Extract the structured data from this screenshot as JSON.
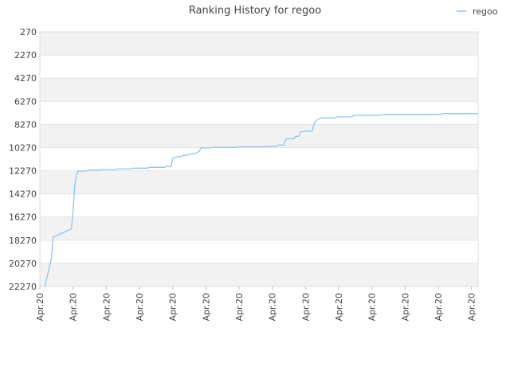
{
  "chart_data": {
    "type": "line",
    "title": "Ranking History for regoo",
    "xlabel": "",
    "ylabel": "",
    "legend_position": "top-right",
    "y_inverted": true,
    "ylim": [
      270,
      22270
    ],
    "y_ticks": [
      270,
      2270,
      4270,
      6270,
      8270,
      10270,
      12270,
      14270,
      16270,
      18270,
      20270,
      22270
    ],
    "x_tick_labels": [
      "Apr.20",
      "Apr.20",
      "Apr.20",
      "Apr.20",
      "Apr.20",
      "Apr.20",
      "Apr.20",
      "Apr.20",
      "Apr.20",
      "Apr.20",
      "Apr.20",
      "Apr.20",
      "Apr.20",
      "Apr.20"
    ],
    "x_range": [
      0,
      13.2
    ],
    "grid": true,
    "series": [
      {
        "name": "regoo",
        "color": "#90c4ee",
        "points": [
          [
            0.15,
            22270
          ],
          [
            0.35,
            19800
          ],
          [
            0.4,
            18000
          ],
          [
            0.95,
            17300
          ],
          [
            1.0,
            15700
          ],
          [
            1.05,
            13600
          ],
          [
            1.1,
            12700
          ],
          [
            1.15,
            12300
          ],
          [
            1.4,
            12300
          ],
          [
            1.45,
            12220
          ],
          [
            1.8,
            12220
          ],
          [
            1.85,
            12170
          ],
          [
            2.3,
            12170
          ],
          [
            2.35,
            12100
          ],
          [
            2.75,
            12100
          ],
          [
            2.8,
            12050
          ],
          [
            3.25,
            12050
          ],
          [
            3.3,
            11980
          ],
          [
            3.75,
            11980
          ],
          [
            3.8,
            11900
          ],
          [
            3.95,
            11900
          ],
          [
            4.0,
            11200
          ],
          [
            4.05,
            11100
          ],
          [
            4.25,
            11050
          ],
          [
            4.3,
            10950
          ],
          [
            4.5,
            10900
          ],
          [
            4.55,
            10800
          ],
          [
            4.7,
            10750
          ],
          [
            4.8,
            10600
          ],
          [
            4.85,
            10300
          ],
          [
            5.15,
            10300
          ],
          [
            5.2,
            10250
          ],
          [
            5.95,
            10250
          ],
          [
            6.0,
            10200
          ],
          [
            6.75,
            10200
          ],
          [
            6.8,
            10150
          ],
          [
            7.1,
            10150
          ],
          [
            7.2,
            10050
          ],
          [
            7.35,
            10050
          ],
          [
            7.4,
            9600
          ],
          [
            7.45,
            9500
          ],
          [
            7.65,
            9500
          ],
          [
            7.7,
            9300
          ],
          [
            7.8,
            9300
          ],
          [
            7.85,
            8900
          ],
          [
            7.95,
            8900
          ],
          [
            8.0,
            8850
          ],
          [
            8.2,
            8850
          ],
          [
            8.25,
            8300
          ],
          [
            8.3,
            8000
          ],
          [
            8.45,
            7700
          ],
          [
            8.9,
            7700
          ],
          [
            8.95,
            7620
          ],
          [
            9.4,
            7620
          ],
          [
            9.45,
            7470
          ],
          [
            10.3,
            7470
          ],
          [
            10.35,
            7400
          ],
          [
            12.1,
            7400
          ],
          [
            12.15,
            7330
          ],
          [
            13.2,
            7330
          ]
        ]
      }
    ]
  }
}
